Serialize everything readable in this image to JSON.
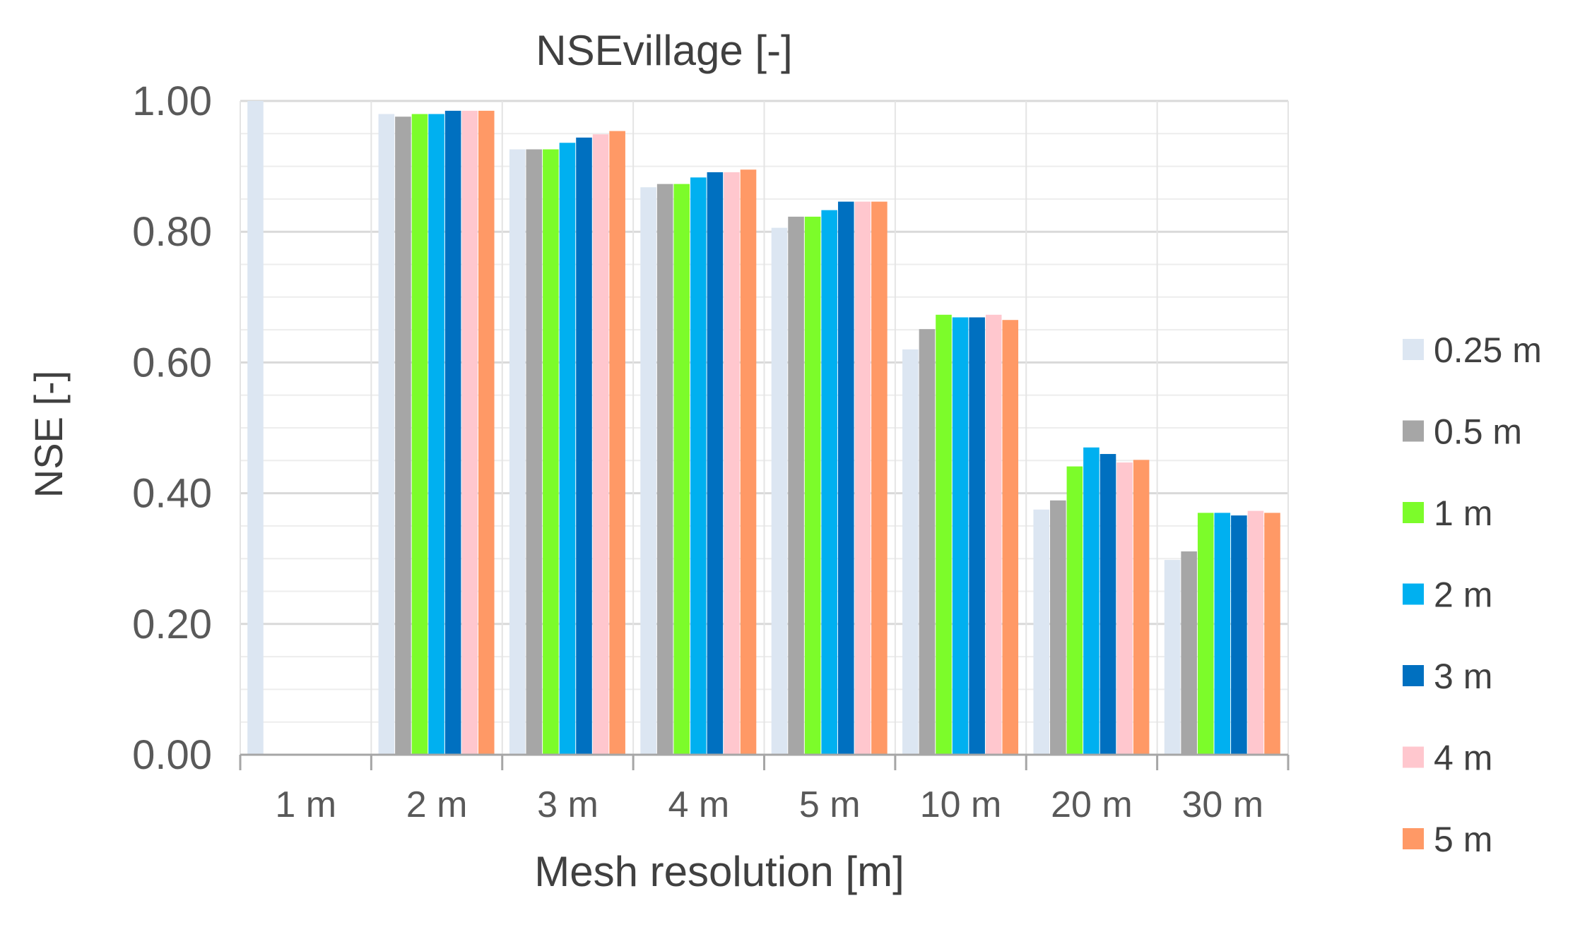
{
  "chart_data": {
    "type": "bar",
    "title": "NSEvillage [-]",
    "xlabel": "Mesh resolution [m]",
    "ylabel": "NSE [-]",
    "ylim": [
      0,
      1
    ],
    "yticks": [
      "0.00",
      "0.20",
      "0.40",
      "0.60",
      "0.80",
      "1.00"
    ],
    "grid": true,
    "legend_position": "right",
    "categories": [
      "1 m",
      "2 m",
      "3 m",
      "4 m",
      "5 m",
      "10 m",
      "20 m",
      "30 m"
    ],
    "series": [
      {
        "name": "0.25 m",
        "color": "#DCE6F2",
        "values": [
          1.0,
          0.98,
          0.926,
          0.868,
          0.806,
          0.62,
          0.375,
          0.298
        ]
      },
      {
        "name": "0.5 m",
        "color": "#A6A6A6",
        "values": [
          null,
          0.976,
          0.926,
          0.873,
          0.823,
          0.651,
          0.389,
          0.311
        ]
      },
      {
        "name": "1 m",
        "color": "#7CFC2A",
        "values": [
          null,
          0.98,
          0.926,
          0.873,
          0.823,
          0.673,
          0.441,
          0.37
        ]
      },
      {
        "name": "2 m",
        "color": "#00B0F0",
        "values": [
          null,
          0.98,
          0.936,
          0.883,
          0.833,
          0.669,
          0.47,
          0.37
        ]
      },
      {
        "name": "3 m",
        "color": "#0070C0",
        "values": [
          null,
          0.985,
          0.944,
          0.891,
          0.846,
          0.669,
          0.46,
          0.366
        ]
      },
      {
        "name": "4 m",
        "color": "#FFC7CE",
        "values": [
          null,
          0.985,
          0.949,
          0.891,
          0.846,
          0.673,
          0.447,
          0.373
        ]
      },
      {
        "name": "5 m",
        "color": "#FF9966",
        "values": [
          null,
          0.985,
          0.954,
          0.895,
          0.846,
          0.665,
          0.451,
          0.37
        ]
      }
    ]
  }
}
